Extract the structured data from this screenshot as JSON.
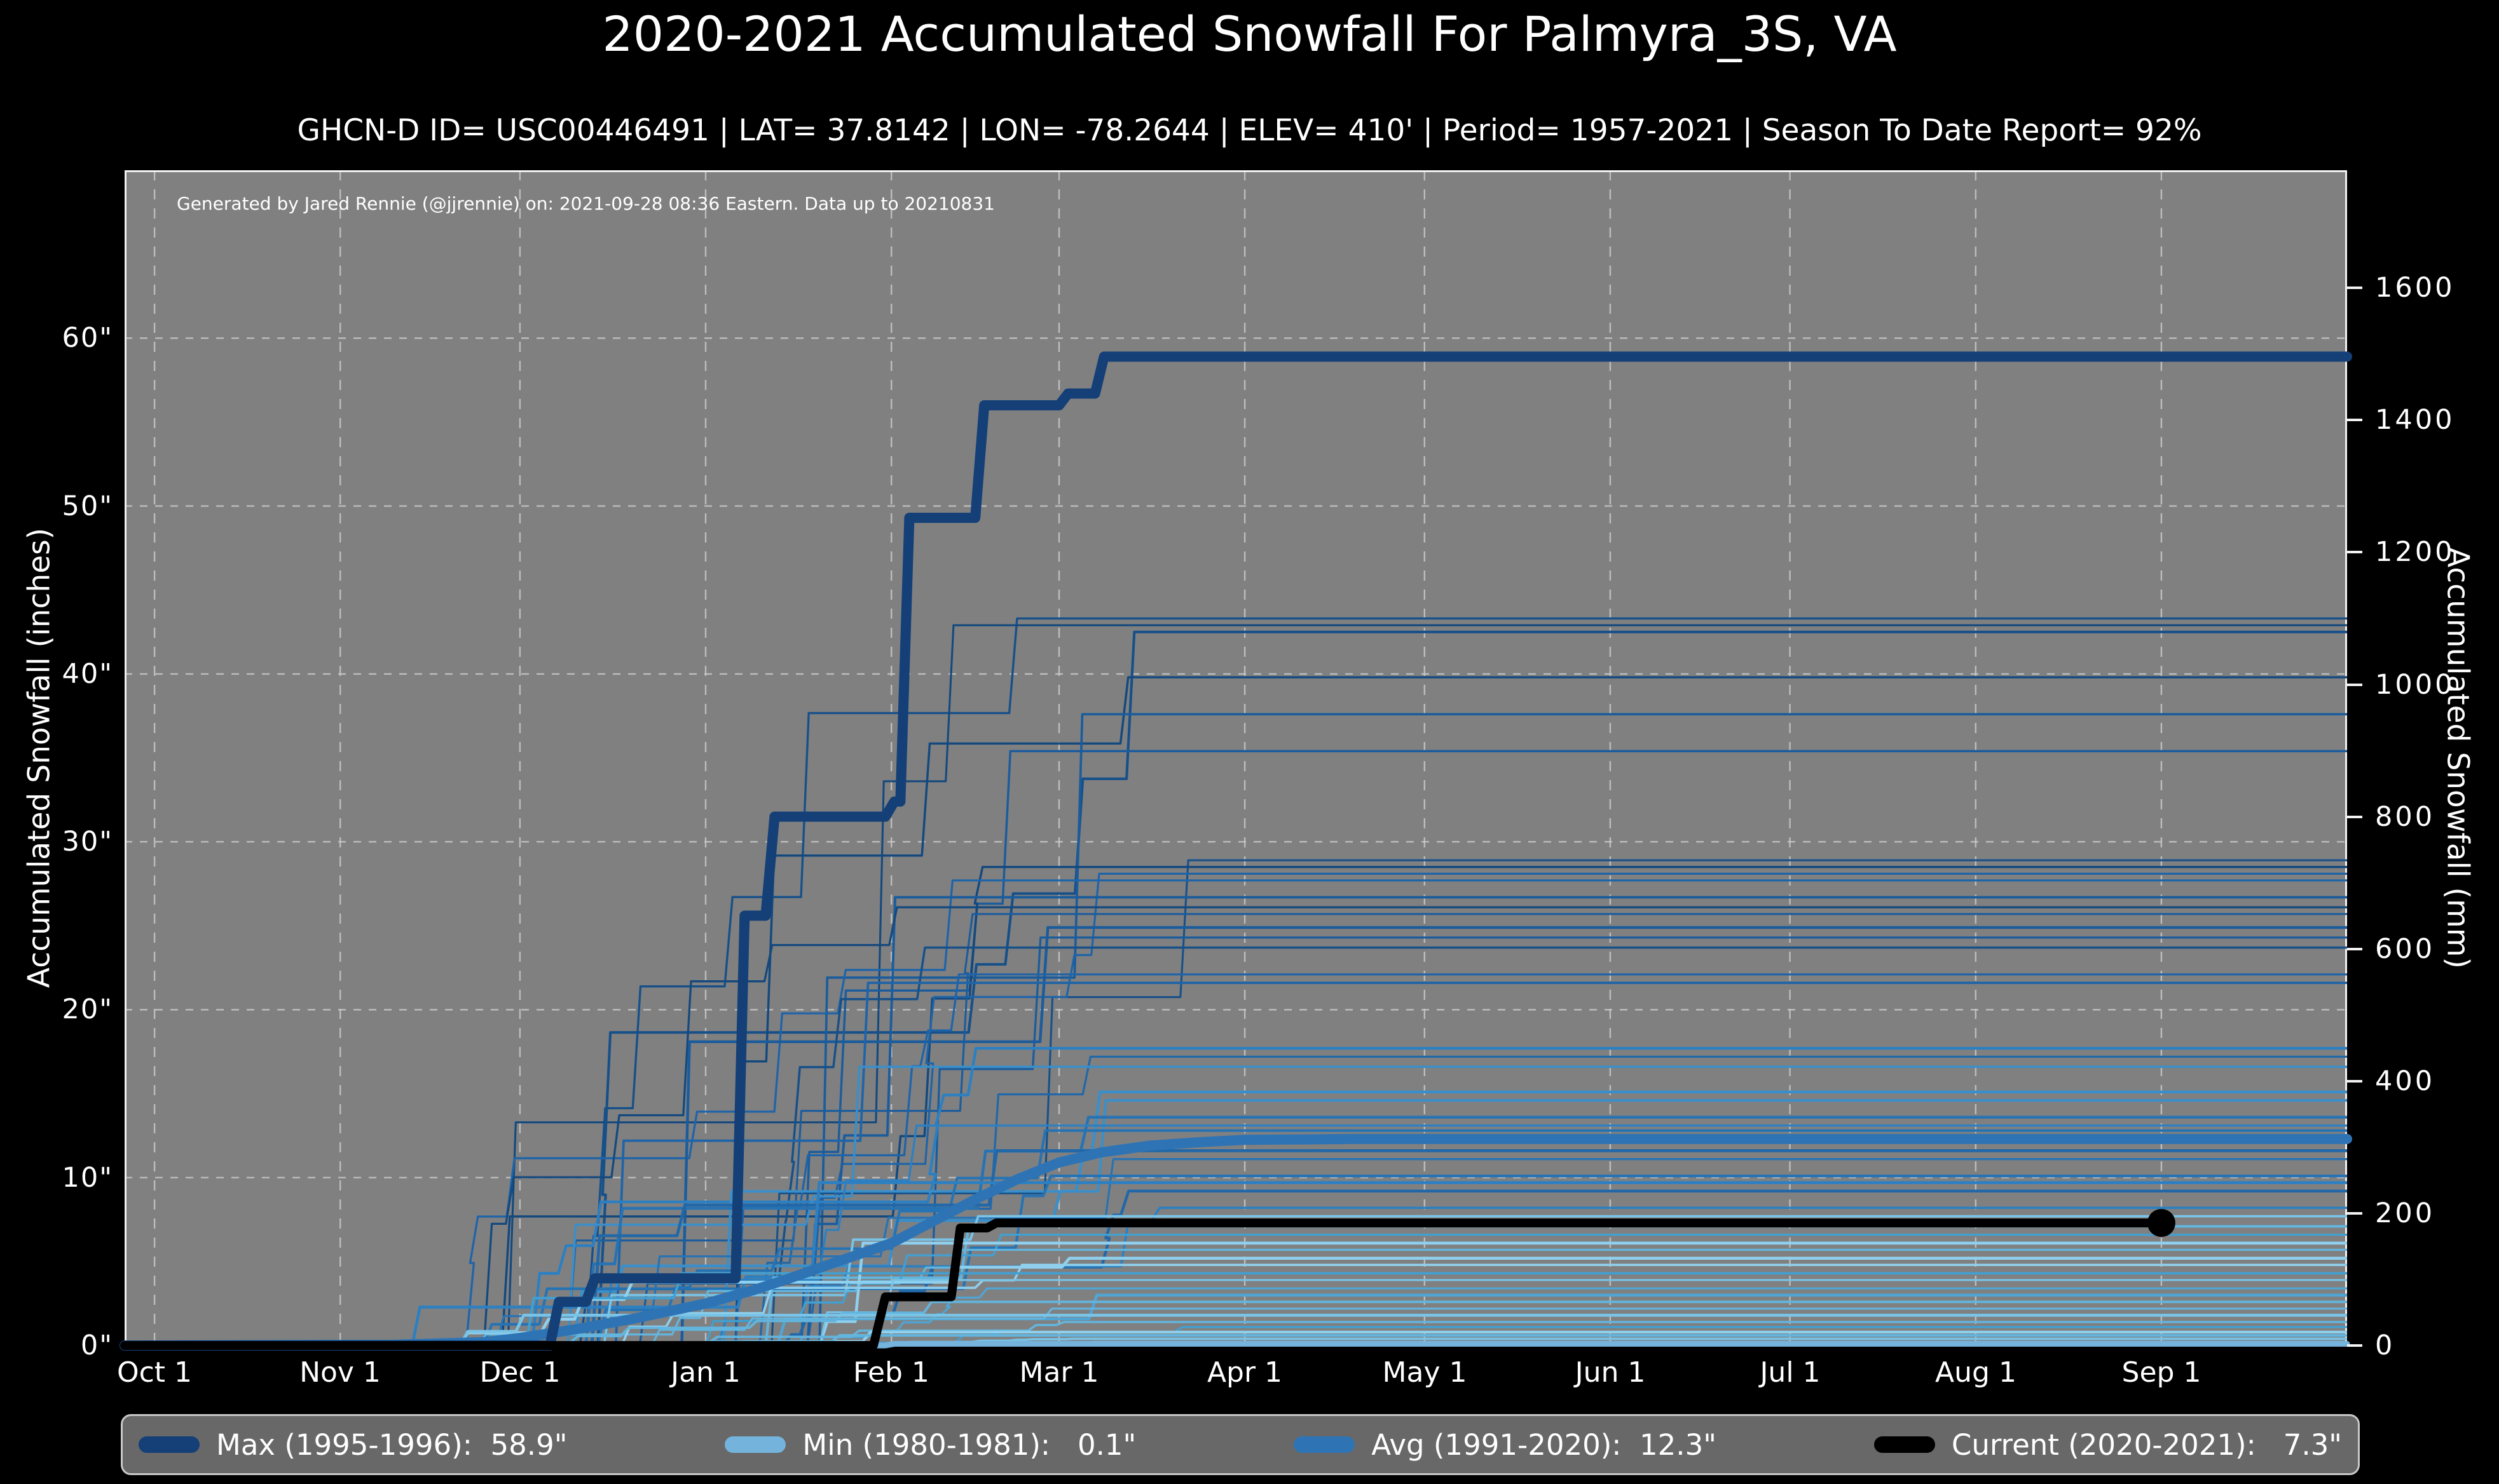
{
  "header": {
    "title": "2020-2021 Accumulated Snowfall For Palmyra_3S, VA",
    "subtitle": "GHCN-D ID= USC00446491 | LAT= 37.8142 | LON= -78.2644 | ELEV= 410' | Period= 1957-2021 | Season To Date Report= 92%"
  },
  "plot": {
    "watermark": "Generated by Jared Rennie (@jjrennie) on: 2021-09-28 08:36 Eastern. Data up to 20210831"
  },
  "axes": {
    "left": {
      "label": "Accumulated Snowfall (inches)",
      "tick_labels": [
        "0\"",
        "10\"",
        "20\"",
        "30\"",
        "40\"",
        "50\"",
        "60\""
      ],
      "tick_values": [
        0,
        10,
        20,
        30,
        40,
        50,
        60
      ],
      "max_inches": 70
    },
    "right": {
      "label": "Accumulated Snowfall (mm)",
      "tick_labels": [
        "0",
        "200",
        "400",
        "600",
        "800",
        "1000",
        "1200",
        "1400",
        "1600"
      ],
      "tick_values_mm": [
        0,
        200,
        400,
        600,
        800,
        1000,
        1200,
        1400,
        1600
      ]
    },
    "x": {
      "tick_labels": [
        "Oct 1",
        "Nov 1",
        "Dec 1",
        "Jan 1",
        "Feb 1",
        "Mar 1",
        "Apr 1",
        "May 1",
        "Jun 1",
        "Jul 1",
        "Aug 1",
        "Sep 1"
      ],
      "tick_days": [
        0,
        31,
        61,
        92,
        123,
        151,
        182,
        212,
        243,
        273,
        304,
        335
      ],
      "domain_days": [
        -5,
        366
      ]
    }
  },
  "colors": {
    "figure_bg": "#000000",
    "plot_bg": "#808080",
    "grid": "#cdcdcd",
    "spine": "#f2f2f2",
    "text": "#ffffff",
    "legend_bg": "#686868",
    "legend_border": "#c8c8c8"
  },
  "chart_data": {
    "type": "line",
    "title": "2020-2021 Accumulated Snowfall For Palmyra_3S, VA",
    "x_unit": "days since Oct 1",
    "ylim_in": [
      0,
      70
    ],
    "grid": true,
    "legend_order": [
      "max",
      "min",
      "avg",
      "current"
    ],
    "series": [
      {
        "id": "max",
        "name": "Max (1995-1996)",
        "legend_label": "Max (1995-1996):  58.9\"",
        "total_in": 58.9,
        "color": "#143f77",
        "width": 16,
        "points": [
          [
            -5,
            0
          ],
          [
            66,
            0
          ],
          [
            67.5,
            2.6
          ],
          [
            72,
            2.6
          ],
          [
            73.5,
            4.0
          ],
          [
            97,
            4.0
          ],
          [
            98.5,
            25.6
          ],
          [
            102,
            25.6
          ],
          [
            103.5,
            31.5
          ],
          [
            122,
            31.5
          ],
          [
            123.5,
            32.4
          ],
          [
            124.5,
            32.4
          ],
          [
            126,
            49.3
          ],
          [
            137,
            49.3
          ],
          [
            138.5,
            56.0
          ],
          [
            151,
            56.0
          ],
          [
            152.5,
            56.7
          ],
          [
            157,
            56.7
          ],
          [
            158.5,
            58.9
          ],
          [
            366,
            58.9
          ]
        ]
      },
      {
        "id": "min",
        "name": "Min (1980-1981)",
        "legend_label": "Min (1980-1981):   0.1\"",
        "total_in": 0.1,
        "color": "#74b3dc",
        "width": 9,
        "points": [
          [
            -5,
            0
          ],
          [
            122,
            0
          ],
          [
            123.5,
            0.1
          ],
          [
            366,
            0.1
          ]
        ]
      },
      {
        "id": "avg",
        "name": "Avg (1991-2020)",
        "legend_label": "Avg (1991-2020):  12.3\"",
        "total_in": 12.3,
        "color": "#2e74b5",
        "width": 16,
        "points": [
          [
            -5,
            0
          ],
          [
            40,
            0.05
          ],
          [
            55,
            0.2
          ],
          [
            61,
            0.45
          ],
          [
            70,
            0.95
          ],
          [
            80,
            1.6
          ],
          [
            92,
            2.5
          ],
          [
            100,
            3.3
          ],
          [
            106,
            4.0
          ],
          [
            114,
            5.0
          ],
          [
            123,
            6.1
          ],
          [
            130,
            7.4
          ],
          [
            137,
            8.7
          ],
          [
            144,
            9.9
          ],
          [
            151,
            10.9
          ],
          [
            158,
            11.5
          ],
          [
            166,
            11.9
          ],
          [
            174,
            12.1
          ],
          [
            182,
            12.25
          ],
          [
            200,
            12.3
          ],
          [
            366,
            12.3
          ]
        ]
      },
      {
        "id": "current",
        "name": "Current (2020-2021)",
        "legend_label": "Current (2020-2021):   7.3\"",
        "total_in": 7.3,
        "color": "#000000",
        "width": 14,
        "points": [
          [
            -5,
            0
          ],
          [
            120,
            0
          ],
          [
            122,
            2.9
          ],
          [
            133,
            2.9
          ],
          [
            134.5,
            7.0
          ],
          [
            139,
            7.0
          ],
          [
            140.5,
            7.3
          ],
          [
            335,
            7.3
          ]
        ],
        "end_marker": {
          "day": 335,
          "value_in": 7.3,
          "radius": 22
        }
      }
    ],
    "background_seasons": {
      "description": "Other seasons 1957-2021, season-total accumulated snowfall in inches",
      "totals_in": [
        43.3,
        42.9,
        42.5,
        39.8,
        37.6,
        35.4,
        28.9,
        28.5,
        28.1,
        27.7,
        26.7,
        26.1,
        25.7,
        24.9,
        24.3,
        23.7,
        22.1,
        21.6,
        17.7,
        17.2,
        16.6,
        15.1,
        14.6,
        13.6,
        13.1,
        12.8,
        11.6,
        11.1,
        10.1,
        9.7,
        9.2,
        8.2,
        7.7,
        7.1,
        6.6,
        6.1,
        5.7,
        5.2,
        4.8,
        4.3,
        3.9,
        3.4,
        3.0,
        2.6,
        2.2,
        1.8,
        1.4,
        1.1,
        0.8,
        0.6,
        0.4,
        0.2
      ],
      "early_start_index": 29,
      "palette": {
        "dark": [
          "#175089",
          "#1b5c9c",
          "#14497e",
          "#1f64a8"
        ],
        "mid": [
          "#2673b4",
          "#2c80c2",
          "#3a8fca",
          "#2268a8"
        ],
        "light": [
          "#4fa6d4",
          "#63b5de",
          "#79c3e6",
          "#8fd0ee",
          "#41a0d2"
        ]
      }
    }
  }
}
